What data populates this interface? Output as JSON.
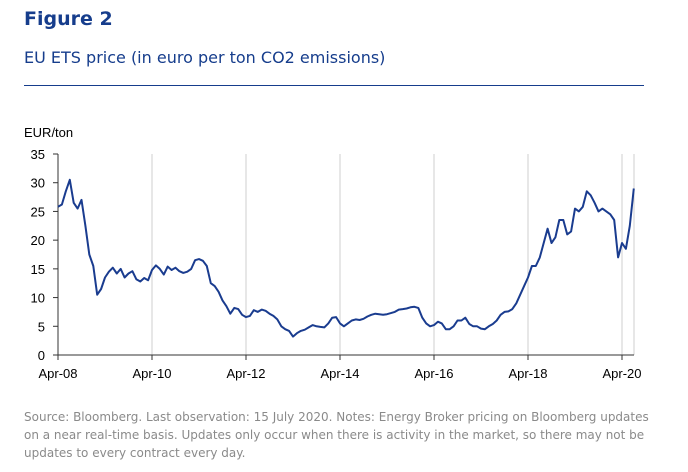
{
  "figure": {
    "label": "Figure 2",
    "title": "EU ETS price (in euro per ton CO2 emissions)",
    "note": "Source: Bloomberg. Last observation: 15 July 2020. Notes: Energy Broker pricing on Bloomberg updates on a near real-time basis. Updates only occur when there is activity in the market, so there may not be updates to every contract every day."
  },
  "chart_data": {
    "type": "line",
    "title": "EU ETS price (in euro per ton CO2 emissions)",
    "ylabel": "EUR/ton",
    "xlabel": "",
    "ylim": [
      0,
      35
    ],
    "yticks": [
      0,
      5,
      10,
      15,
      20,
      25,
      30,
      35
    ],
    "xlim": [
      "2008-04",
      "2020-07"
    ],
    "xticks": [
      {
        "date": "2008-04",
        "label": "Apr-08"
      },
      {
        "date": "2010-04",
        "label": "Apr-10"
      },
      {
        "date": "2012-04",
        "label": "Apr-12"
      },
      {
        "date": "2014-04",
        "label": "Apr-14"
      },
      {
        "date": "2016-04",
        "label": "Apr-16"
      },
      {
        "date": "2018-04",
        "label": "Apr-18"
      },
      {
        "date": "2020-04",
        "label": "Apr-20"
      }
    ],
    "grid": {
      "vertical": true,
      "horizontal": false
    },
    "line_color": "#1a3c8f",
    "series": [
      {
        "name": "",
        "points": [
          [
            "2008-04",
            25.8
          ],
          [
            "2008-05",
            26.2
          ],
          [
            "2008-06",
            28.5
          ],
          [
            "2008-07",
            30.5
          ],
          [
            "2008-08",
            26.5
          ],
          [
            "2008-09",
            25.5
          ],
          [
            "2008-10",
            27.0
          ],
          [
            "2008-11",
            22.5
          ],
          [
            "2008-12",
            17.5
          ],
          [
            "2009-01",
            15.5
          ],
          [
            "2009-02",
            10.5
          ],
          [
            "2009-03",
            11.5
          ],
          [
            "2009-04",
            13.5
          ],
          [
            "2009-05",
            14.5
          ],
          [
            "2009-06",
            15.2
          ],
          [
            "2009-07",
            14.2
          ],
          [
            "2009-08",
            15.0
          ],
          [
            "2009-09",
            13.5
          ],
          [
            "2009-10",
            14.2
          ],
          [
            "2009-11",
            14.6
          ],
          [
            "2009-12",
            13.2
          ],
          [
            "2010-01",
            12.8
          ],
          [
            "2010-02",
            13.4
          ],
          [
            "2010-03",
            13.0
          ],
          [
            "2010-04",
            14.8
          ],
          [
            "2010-05",
            15.6
          ],
          [
            "2010-06",
            15.0
          ],
          [
            "2010-07",
            14.0
          ],
          [
            "2010-08",
            15.4
          ],
          [
            "2010-09",
            14.8
          ],
          [
            "2010-10",
            15.2
          ],
          [
            "2010-11",
            14.6
          ],
          [
            "2010-12",
            14.3
          ],
          [
            "2011-01",
            14.5
          ],
          [
            "2011-02",
            15.0
          ],
          [
            "2011-03",
            16.5
          ],
          [
            "2011-04",
            16.7
          ],
          [
            "2011-05",
            16.4
          ],
          [
            "2011-06",
            15.5
          ],
          [
            "2011-07",
            12.5
          ],
          [
            "2011-08",
            12.0
          ],
          [
            "2011-09",
            11.0
          ],
          [
            "2011-10",
            9.5
          ],
          [
            "2011-11",
            8.5
          ],
          [
            "2011-12",
            7.2
          ],
          [
            "2012-01",
            8.2
          ],
          [
            "2012-02",
            8.0
          ],
          [
            "2012-03",
            7.0
          ],
          [
            "2012-04",
            6.6
          ],
          [
            "2012-05",
            6.8
          ],
          [
            "2012-06",
            7.8
          ],
          [
            "2012-07",
            7.5
          ],
          [
            "2012-08",
            7.9
          ],
          [
            "2012-09",
            7.7
          ],
          [
            "2012-10",
            7.2
          ],
          [
            "2012-11",
            6.8
          ],
          [
            "2012-12",
            6.2
          ],
          [
            "2013-01",
            5.0
          ],
          [
            "2013-02",
            4.5
          ],
          [
            "2013-03",
            4.2
          ],
          [
            "2013-04",
            3.2
          ],
          [
            "2013-05",
            3.8
          ],
          [
            "2013-06",
            4.2
          ],
          [
            "2013-07",
            4.4
          ],
          [
            "2013-08",
            4.8
          ],
          [
            "2013-09",
            5.2
          ],
          [
            "2013-10",
            5.0
          ],
          [
            "2013-11",
            4.9
          ],
          [
            "2013-12",
            4.8
          ],
          [
            "2014-01",
            5.5
          ],
          [
            "2014-02",
            6.5
          ],
          [
            "2014-03",
            6.6
          ],
          [
            "2014-04",
            5.5
          ],
          [
            "2014-05",
            5.0
          ],
          [
            "2014-06",
            5.5
          ],
          [
            "2014-07",
            6.0
          ],
          [
            "2014-08",
            6.2
          ],
          [
            "2014-09",
            6.1
          ],
          [
            "2014-10",
            6.3
          ],
          [
            "2014-11",
            6.7
          ],
          [
            "2014-12",
            7.0
          ],
          [
            "2015-01",
            7.2
          ],
          [
            "2015-02",
            7.1
          ],
          [
            "2015-03",
            7.0
          ],
          [
            "2015-04",
            7.1
          ],
          [
            "2015-05",
            7.3
          ],
          [
            "2015-06",
            7.5
          ],
          [
            "2015-07",
            7.9
          ],
          [
            "2015-08",
            8.0
          ],
          [
            "2015-09",
            8.1
          ],
          [
            "2015-10",
            8.3
          ],
          [
            "2015-11",
            8.4
          ],
          [
            "2015-12",
            8.2
          ],
          [
            "2016-01",
            6.5
          ],
          [
            "2016-02",
            5.5
          ],
          [
            "2016-03",
            5.0
          ],
          [
            "2016-04",
            5.2
          ],
          [
            "2016-05",
            5.8
          ],
          [
            "2016-06",
            5.5
          ],
          [
            "2016-07",
            4.5
          ],
          [
            "2016-08",
            4.5
          ],
          [
            "2016-09",
            5.0
          ],
          [
            "2016-10",
            6.0
          ],
          [
            "2016-11",
            6.0
          ],
          [
            "2016-12",
            6.5
          ],
          [
            "2017-01",
            5.4
          ],
          [
            "2017-02",
            5.0
          ],
          [
            "2017-03",
            5.0
          ],
          [
            "2017-04",
            4.6
          ],
          [
            "2017-05",
            4.5
          ],
          [
            "2017-06",
            5.0
          ],
          [
            "2017-07",
            5.4
          ],
          [
            "2017-08",
            6.0
          ],
          [
            "2017-09",
            7.0
          ],
          [
            "2017-10",
            7.5
          ],
          [
            "2017-11",
            7.6
          ],
          [
            "2017-12",
            8.0
          ],
          [
            "2018-01",
            9.0
          ],
          [
            "2018-02",
            10.5
          ],
          [
            "2018-03",
            12.0
          ],
          [
            "2018-04",
            13.5
          ],
          [
            "2018-05",
            15.5
          ],
          [
            "2018-06",
            15.5
          ],
          [
            "2018-07",
            17.0
          ],
          [
            "2018-08",
            19.5
          ],
          [
            "2018-09",
            22.0
          ],
          [
            "2018-10",
            19.5
          ],
          [
            "2018-11",
            20.5
          ],
          [
            "2018-12",
            23.5
          ],
          [
            "2019-01",
            23.5
          ],
          [
            "2019-02",
            21.0
          ],
          [
            "2019-03",
            21.5
          ],
          [
            "2019-04",
            25.5
          ],
          [
            "2019-05",
            25.0
          ],
          [
            "2019-06",
            25.8
          ],
          [
            "2019-07",
            28.5
          ],
          [
            "2019-08",
            27.8
          ],
          [
            "2019-09",
            26.5
          ],
          [
            "2019-10",
            25.0
          ],
          [
            "2019-11",
            25.5
          ],
          [
            "2019-12",
            25.0
          ],
          [
            "2020-01",
            24.5
          ],
          [
            "2020-02",
            23.5
          ],
          [
            "2020-03",
            17.0
          ],
          [
            "2020-04",
            19.5
          ],
          [
            "2020-05",
            18.5
          ],
          [
            "2020-06",
            22.5
          ],
          [
            "2020-07",
            29.0
          ]
        ]
      }
    ]
  }
}
